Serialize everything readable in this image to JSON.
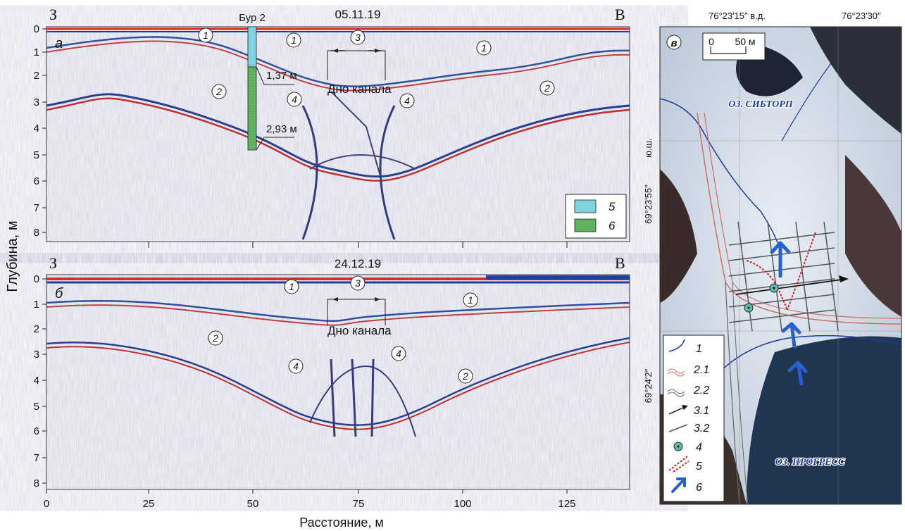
{
  "figure": {
    "ylabel": "Глубина, м",
    "xlabel": "Расстояние, м",
    "x_ticks": [
      "0",
      "25",
      "50",
      "75",
      "100",
      "125"
    ],
    "y_ticks": [
      "0",
      "1",
      "2",
      "3",
      "4",
      "5",
      "6",
      "7",
      "8"
    ]
  },
  "panel_a": {
    "letter": "а",
    "date": "05.11.19",
    "west": "З",
    "east": "В",
    "borehole_label": "Бур 2",
    "depth_1": "1,37 м",
    "depth_2": "2,93 м",
    "channel_bottom": "Дно канала",
    "markers": [
      "1",
      "1",
      "1",
      "2",
      "2",
      "3",
      "4",
      "4"
    ],
    "legend": [
      {
        "num": "5",
        "color": "#7fd3df"
      },
      {
        "num": "6",
        "color": "#79c77a"
      }
    ]
  },
  "panel_b": {
    "letter": "б",
    "date": "24.12.19",
    "west": "З",
    "east": "В",
    "channel_bottom": "Дно канала",
    "markers": [
      "1",
      "1",
      "2",
      "2",
      "3",
      "4",
      "4"
    ]
  },
  "panel_v": {
    "letter": "в",
    "lon_1": "76°23′15″ в.д.",
    "lon_2": "76°23′30″",
    "lat_1": "69°23′55″",
    "lat_1_suffix": "ю.ш.",
    "lat_2": "69°24′2″",
    "scale_0": "0",
    "scale_50": "50 м",
    "lake_top": "ОЗ. СИБТОРП",
    "lake_bottom": "ОЗ. ПРОГРЕСС",
    "legend": [
      "1",
      "2.1",
      "2.2",
      "3.1",
      "3.2",
      "4",
      "5",
      "6"
    ]
  }
}
